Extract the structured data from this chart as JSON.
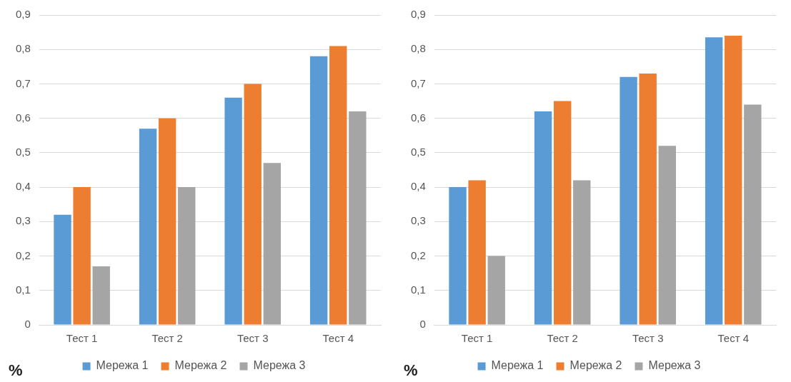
{
  "chart_data": [
    {
      "type": "bar",
      "ylabel": "%",
      "categories": [
        "Тест 1",
        "Тест 2",
        "Тест 3",
        "Тест 4"
      ],
      "series": [
        {
          "name": "Мережа 1",
          "color": "#5b9bd5",
          "values": [
            0.32,
            0.57,
            0.66,
            0.78
          ]
        },
        {
          "name": "Мережа 2",
          "color": "#ed7d31",
          "values": [
            0.4,
            0.6,
            0.7,
            0.81
          ]
        },
        {
          "name": "Мережа 3",
          "color": "#a5a5a5",
          "values": [
            0.17,
            0.4,
            0.47,
            0.62
          ]
        }
      ],
      "ylim": [
        0,
        0.9
      ],
      "yticks": [
        {
          "value": 0,
          "label": "0"
        },
        {
          "value": 0.1,
          "label": "0,1"
        },
        {
          "value": 0.2,
          "label": "0,2"
        },
        {
          "value": 0.3,
          "label": "0,3"
        },
        {
          "value": 0.4,
          "label": "0,4"
        },
        {
          "value": 0.5,
          "label": "0,5"
        },
        {
          "value": 0.6,
          "label": "0,6"
        },
        {
          "value": 0.7,
          "label": "0,7"
        },
        {
          "value": 0.8,
          "label": "0,8"
        },
        {
          "value": 0.9,
          "label": "0,9"
        }
      ],
      "grid": "y",
      "legend": "bottom"
    },
    {
      "type": "bar",
      "ylabel": "%",
      "categories": [
        "Тест 1",
        "Тест 2",
        "Тест 3",
        "Тест 4"
      ],
      "series": [
        {
          "name": "Мережа 1",
          "color": "#5b9bd5",
          "values": [
            0.4,
            0.62,
            0.72,
            0.835
          ]
        },
        {
          "name": "Мережа 2",
          "color": "#ed7d31",
          "values": [
            0.42,
            0.65,
            0.73,
            0.84
          ]
        },
        {
          "name": "Мережа 3",
          "color": "#a5a5a5",
          "values": [
            0.2,
            0.42,
            0.52,
            0.64
          ]
        }
      ],
      "ylim": [
        0,
        0.9
      ],
      "yticks": [
        {
          "value": 0,
          "label": "0"
        },
        {
          "value": 0.1,
          "label": "0,1"
        },
        {
          "value": 0.2,
          "label": "0,2"
        },
        {
          "value": 0.3,
          "label": "0,3"
        },
        {
          "value": 0.4,
          "label": "0,4"
        },
        {
          "value": 0.5,
          "label": "0,5"
        },
        {
          "value": 0.6,
          "label": "0,6"
        },
        {
          "value": 0.7,
          "label": "0,7"
        },
        {
          "value": 0.8,
          "label": "0,8"
        },
        {
          "value": 0.9,
          "label": "0,9"
        }
      ],
      "grid": "y",
      "legend": "bottom"
    }
  ]
}
